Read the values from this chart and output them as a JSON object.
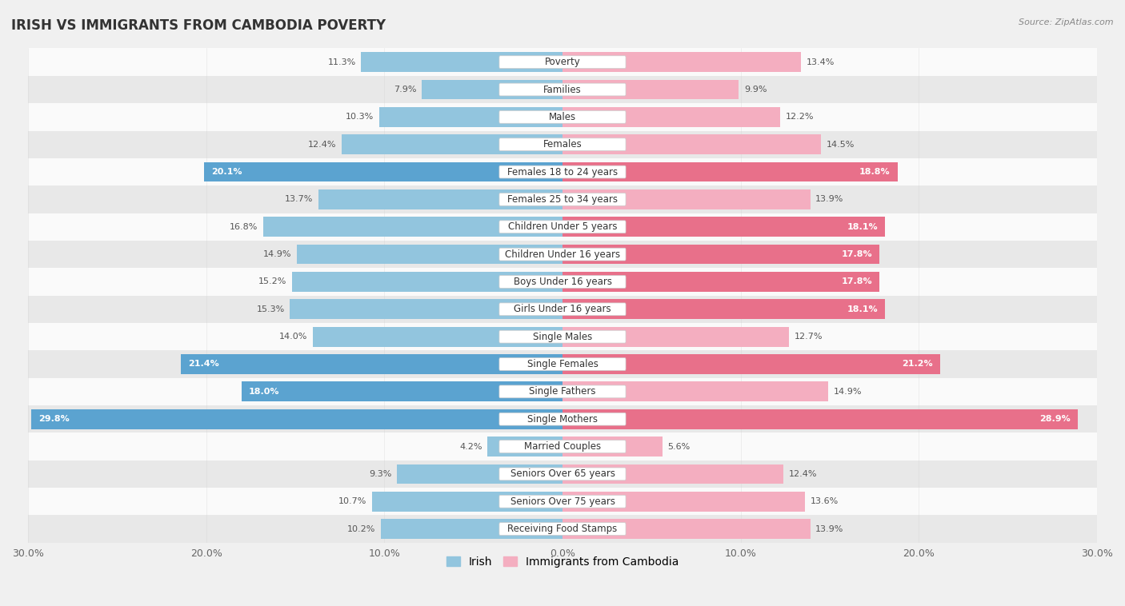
{
  "title": "IRISH VS IMMIGRANTS FROM CAMBODIA POVERTY",
  "source": "Source: ZipAtlas.com",
  "categories": [
    "Poverty",
    "Families",
    "Males",
    "Females",
    "Females 18 to 24 years",
    "Females 25 to 34 years",
    "Children Under 5 years",
    "Children Under 16 years",
    "Boys Under 16 years",
    "Girls Under 16 years",
    "Single Males",
    "Single Females",
    "Single Fathers",
    "Single Mothers",
    "Married Couples",
    "Seniors Over 65 years",
    "Seniors Over 75 years",
    "Receiving Food Stamps"
  ],
  "irish_values": [
    11.3,
    7.9,
    10.3,
    12.4,
    20.1,
    13.7,
    16.8,
    14.9,
    15.2,
    15.3,
    14.0,
    21.4,
    18.0,
    29.8,
    4.2,
    9.3,
    10.7,
    10.2
  ],
  "cambodia_values": [
    13.4,
    9.9,
    12.2,
    14.5,
    18.8,
    13.9,
    18.1,
    17.8,
    17.8,
    18.1,
    12.7,
    21.2,
    14.9,
    28.9,
    5.6,
    12.4,
    13.6,
    13.9
  ],
  "irish_color_normal": "#92c5de",
  "cambodia_color_normal": "#f4aec0",
  "irish_color_highlight": "#5ba3d0",
  "cambodia_color_highlight": "#e8708a",
  "highlight_threshold": 17.5,
  "bg_color": "#f0f0f0",
  "row_color_light": "#fafafa",
  "row_color_dark": "#e8e8e8",
  "xlim": 30.0,
  "bar_height": 0.72,
  "legend_irish": "Irish",
  "legend_cambodia": "Immigrants from Cambodia",
  "title_fontsize": 12,
  "label_fontsize": 8.5,
  "value_fontsize": 8,
  "xtick_values": [
    -30,
    -20,
    -10,
    0,
    10,
    20,
    30
  ]
}
